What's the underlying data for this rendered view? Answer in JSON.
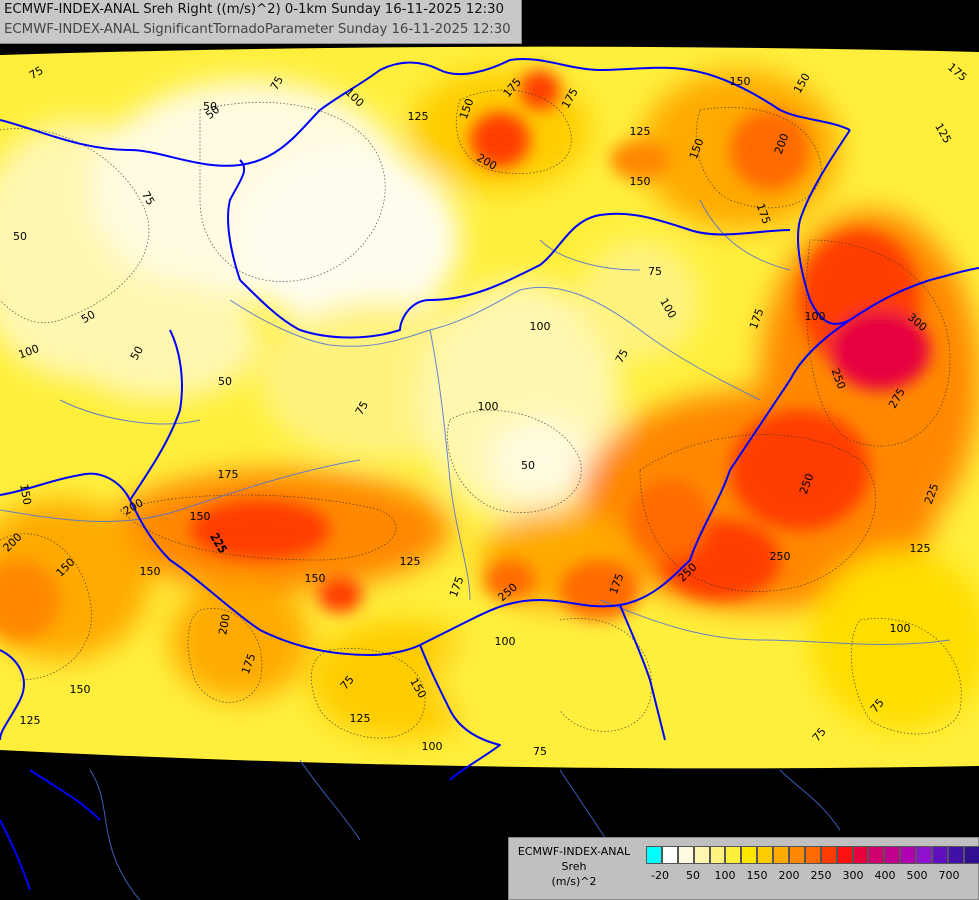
{
  "title": {
    "line1": "ECMWF-INDEX-ANAL Sreh Right ((m/s)^2) 0-1km Sunday 16-11-2025 12:30",
    "line2": "ECMWF-INDEX-ANAL SignificantTornadoParameter Sunday 16-11-2025 12:30"
  },
  "legend": {
    "name": "ECMWF-INDEX-ANAL",
    "field": "Sreh",
    "unit": "(m/s)^2",
    "colors": [
      "#00ffff",
      "#ffffff",
      "#fffbe0",
      "#fff7b0",
      "#fff380",
      "#ffef3c",
      "#ffe600",
      "#ffcc00",
      "#ffaa00",
      "#ff8800",
      "#ff6a00",
      "#ff3c00",
      "#ff1010",
      "#e60040",
      "#d0006e",
      "#c0008c",
      "#b000b0",
      "#9010d0",
      "#6010c0",
      "#4010a8",
      "#301090",
      "#202080"
    ],
    "ticks": [
      "-20",
      "50",
      "100",
      "150",
      "200",
      "250",
      "300",
      "400",
      "500",
      "700"
    ]
  },
  "contour_labels": [
    "75",
    "75",
    "50",
    "100",
    "125",
    "150",
    "175",
    "175",
    "150",
    "175",
    "150",
    "125",
    "125",
    "150",
    "150",
    "175",
    "200",
    "200",
    "50",
    "75",
    "50",
    "50",
    "100",
    "50",
    "50",
    "100",
    "75",
    "100",
    "75",
    "100",
    "75",
    "100",
    "300",
    "275",
    "250",
    "250",
    "250",
    "225",
    "250",
    "250",
    "200",
    "175",
    "175",
    "225",
    "150",
    "175",
    "200",
    "150",
    "150",
    "200",
    "175",
    "150",
    "125",
    "175",
    "125",
    "75",
    "125",
    "150",
    "100",
    "100",
    "75",
    "100",
    "75",
    "125",
    "75",
    "50",
    "150",
    "225",
    "150"
  ],
  "colors": {
    "background": "#000000",
    "border": "#0000ff",
    "river": "#4a6fd8"
  }
}
